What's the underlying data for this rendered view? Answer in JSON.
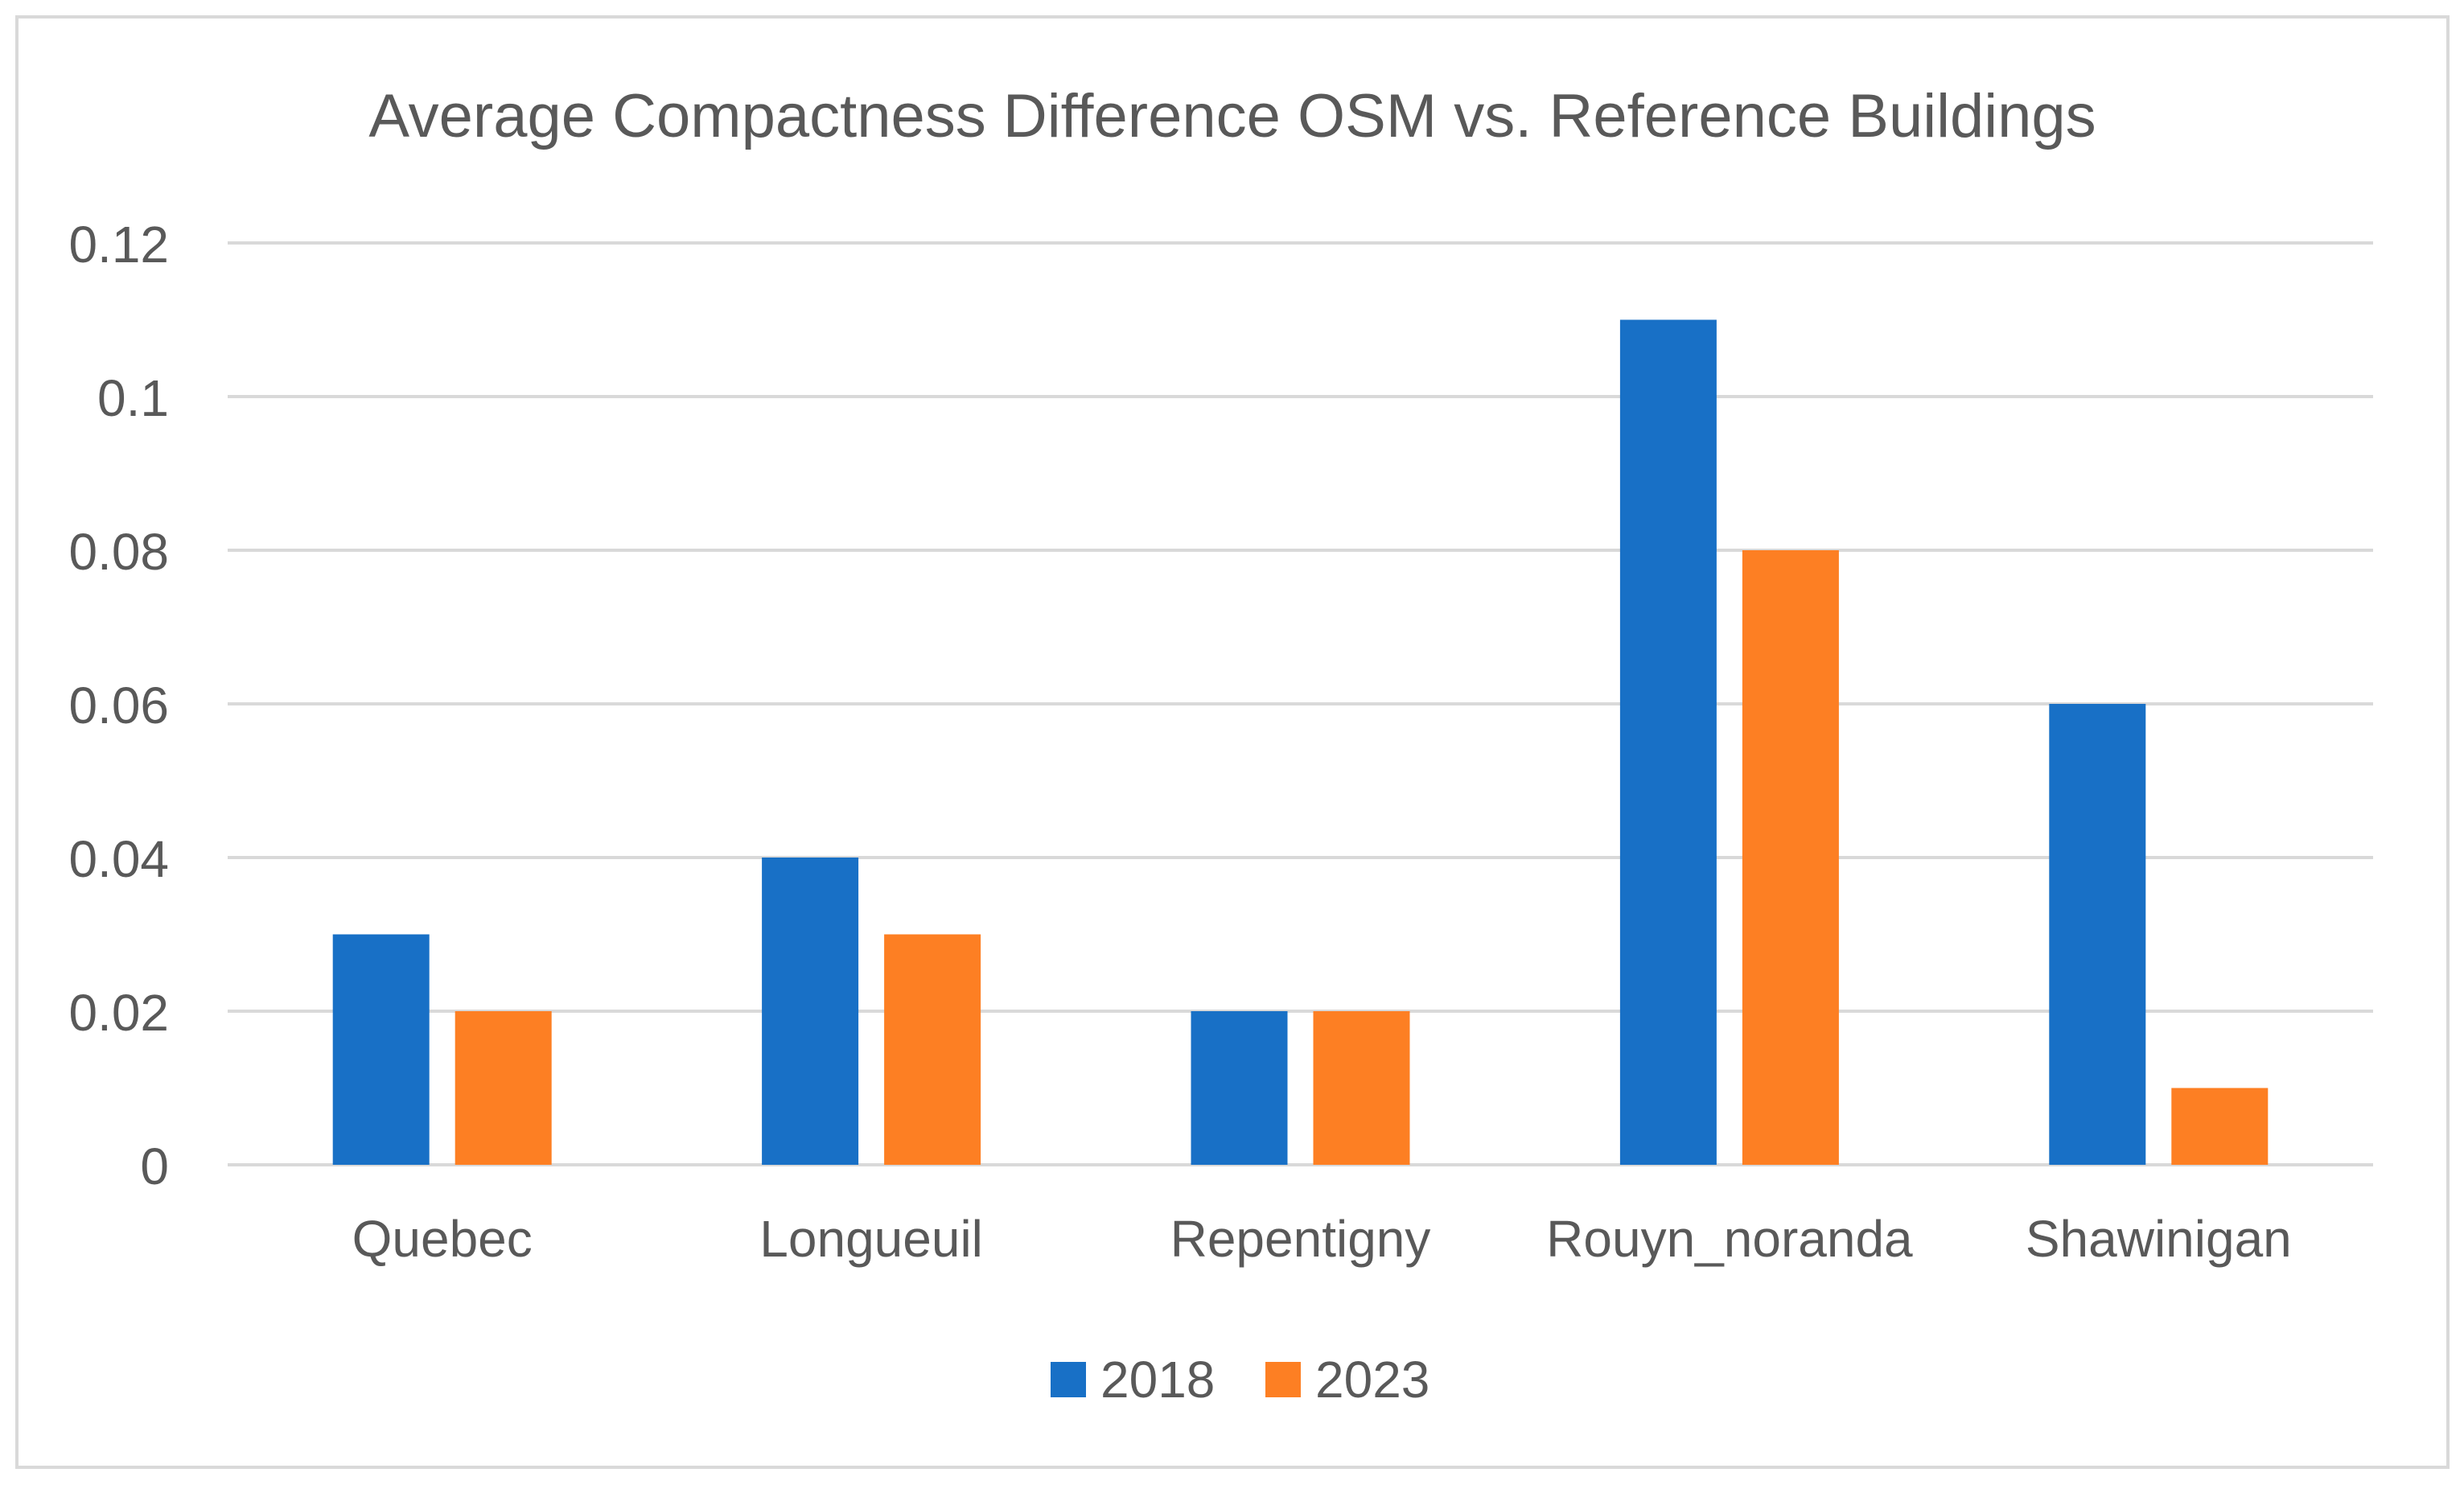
{
  "chart_data": {
    "type": "bar",
    "title": "Average Compactness Difference OSM vs. Reference Buildings",
    "xlabel": "",
    "ylabel": "",
    "categories": [
      "Quebec",
      "Longueuil",
      "Repentigny",
      "Rouyn_noranda",
      "Shawinigan"
    ],
    "series": [
      {
        "name": "2018",
        "color": "#1870C6",
        "values": [
          0.03,
          0.04,
          0.02,
          0.11,
          0.06
        ]
      },
      {
        "name": "2023",
        "color": "#FD7F23",
        "values": [
          0.02,
          0.03,
          0.02,
          0.08,
          0.01
        ]
      }
    ],
    "ylim": [
      0,
      0.12
    ],
    "yticks": [
      0,
      0.02,
      0.04,
      0.06,
      0.08,
      0.1,
      0.12
    ],
    "ytick_labels": [
      "0",
      "0.02",
      "0.04",
      "0.06",
      "0.08",
      "0.1",
      "0.12"
    ],
    "grid": true,
    "legend_position": "bottom-center"
  }
}
